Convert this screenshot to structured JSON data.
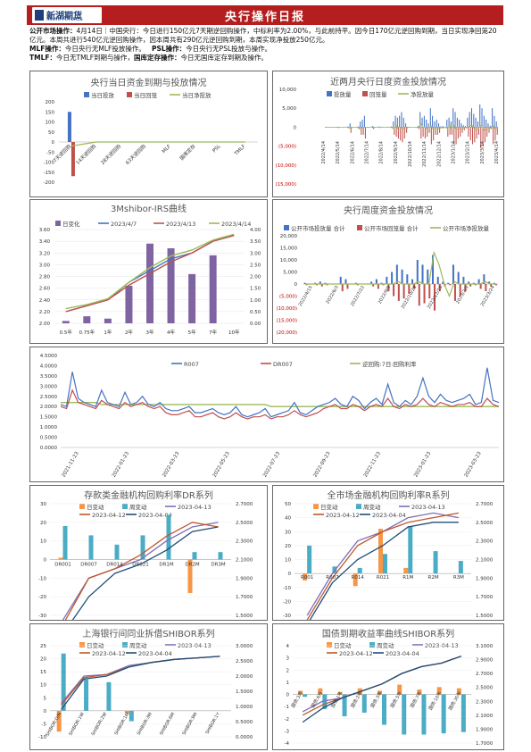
{
  "header": {
    "logo_cn": "新湖期货",
    "logo_en": "XINHU FUTURES",
    "title": "央行操作日报"
  },
  "summary": {
    "l1_label": "公开市场操作：",
    "l1_text": "4月14日｜中国央行：今日进行150亿元7天期逆回购操作，中标利率为2.00%，与此前持平。因今日170亿元逆回购到期，当日实现净回笼20亿元。本周共进行540亿元逆回购操作，因本周共有290亿元逆回购到期，本周实现净投放250亿元。",
    "l2_label1": "MLF操作：",
    "l2_text1": "今日央行无MLF投放操作。",
    "l2_label2": "PSL操作：",
    "l2_text2": "今日央行无PSL投放与操作。",
    "l3_label1": "TMLF：",
    "l3_text1": "今日无TMLF到期与操作，",
    "l3_label2": "国库定存操作：",
    "l3_text2": "今日无国库定存到期及操作。"
  },
  "chart_data": [
    {
      "id": "c1",
      "type": "bar",
      "title": "央行当日资金到期与投放情况",
      "categories": [
        "7天逆回购",
        "14天逆回购",
        "28天逆回购",
        "63天逆回购",
        "MLF",
        "国库定存",
        "PSL",
        "TMLF"
      ],
      "series": [
        {
          "name": "当日投放",
          "color": "#4472c4",
          "values": [
            150,
            0,
            0,
            0,
            0,
            0,
            0,
            0
          ]
        },
        {
          "name": "当日回笼",
          "color": "#c0504d",
          "values": [
            -170,
            0,
            0,
            0,
            0,
            0,
            0,
            0
          ]
        },
        {
          "name": "当日净投放",
          "color": "#9bbb59",
          "values": [
            -20,
            0,
            0,
            0,
            0,
            0,
            0,
            0
          ]
        }
      ],
      "yticks": [
        "200",
        "150",
        "100",
        "50",
        "0",
        "-50",
        "-100",
        "-150",
        "-200"
      ],
      "ylim": [
        -200,
        200
      ]
    },
    {
      "id": "c2",
      "type": "bar",
      "title": "近两月央行日度资金投放情况",
      "legend": [
        "投放量",
        "回笼量",
        "净投放量"
      ],
      "x": [
        "2022/4/14",
        "2022/5/14",
        "2022/6/14",
        "2022/7/14",
        "2022/8/14",
        "2022/9/14",
        "2022/10/14",
        "2022/11/14",
        "2022/12/14",
        "2023/1/14",
        "2023/2/14",
        "2023/3/14",
        "2023/4/14"
      ],
      "yticks": [
        "10,000",
        "5,000",
        "0",
        "(5,000)",
        "(10,000)",
        "(15,000)"
      ],
      "ylim": [
        -15000,
        10000
      ],
      "invest": [
        100,
        20,
        20,
        30,
        20,
        20,
        100,
        20,
        20,
        20,
        50,
        200,
        1000,
        20,
        20,
        100,
        200,
        1500,
        2000,
        3000,
        100,
        20,
        20,
        300,
        20,
        20,
        200,
        100,
        20,
        20,
        100,
        20,
        200,
        1500,
        3000,
        2500,
        3000,
        4000,
        2500,
        1000,
        100,
        20,
        20,
        20,
        20,
        300,
        4000,
        2500,
        3000,
        2000,
        1000,
        5000,
        3000,
        1500,
        2000,
        1000,
        200,
        300,
        100,
        2000,
        2500,
        1500,
        5000,
        4000,
        2500,
        2000,
        1000,
        500,
        300,
        2500,
        4000,
        5000,
        3500,
        2500,
        1500,
        6000,
        5000,
        3000,
        2000,
        1000,
        400,
        5000,
        3000,
        1500
      ],
      "withdraw": [
        -100,
        -20,
        -20,
        -30,
        -20,
        -20,
        -200,
        -20,
        -20,
        -20,
        -50,
        -300,
        -1500,
        -20,
        -20,
        -100,
        -500,
        -2000,
        -2000,
        -3000,
        -100,
        -20,
        -20,
        -500,
        -20,
        -20,
        -200,
        -100,
        -20,
        -20,
        -100,
        -20,
        -300,
        -2000,
        -2500,
        -3000,
        -3500,
        -4000,
        -3000,
        -1500,
        -100,
        -20,
        -20,
        -20,
        -20,
        -500,
        -3000,
        -2500,
        -3000,
        -2500,
        -1500,
        -4500,
        -3500,
        -2000,
        -2000,
        -1500,
        -300,
        -300,
        -100,
        -2500,
        -2000,
        -2000,
        -4500,
        -4500,
        -3000,
        -2500,
        -1500,
        -800,
        -300,
        -2500,
        -3500,
        -4500,
        -4000,
        -3000,
        -2000,
        -5500,
        -5000,
        -4000,
        -2500,
        -1500,
        -500,
        -4500,
        -3500,
        -2000
      ],
      "net": [
        0,
        0,
        0,
        0,
        0,
        0,
        -100,
        0,
        0,
        0,
        0,
        -100,
        -500,
        0,
        0,
        0,
        -300,
        -500,
        0,
        0,
        0,
        0,
        0,
        -200,
        0,
        0,
        0,
        0,
        0,
        0,
        0,
        0,
        -100,
        -500,
        500,
        -500,
        -500,
        0,
        -500,
        -500,
        0,
        0,
        0,
        0,
        0,
        -200,
        1000,
        0,
        0,
        -500,
        -500,
        500,
        -500,
        -500,
        0,
        -500,
        -100,
        0,
        0,
        -500,
        500,
        -500,
        500,
        -500,
        -500,
        -500,
        -500,
        -300,
        0,
        0,
        500,
        500,
        -500,
        -500,
        -500,
        500,
        0,
        -1000,
        -500,
        -500,
        -100,
        500,
        -500,
        -500
      ]
    },
    {
      "id": "c3",
      "type": "bar+line",
      "title": "3Mshibor-IRS曲线",
      "legend": [
        "日变化",
        "2023/4/7",
        "2023/4/13",
        "2023/4/14"
      ],
      "categories": [
        "0.5年",
        "0.75年",
        "1年",
        "2年",
        "3年",
        "4年",
        "5年",
        "7年",
        "10年"
      ],
      "daily_change": [
        0.1,
        0.3,
        0.2,
        1.6,
        3.4,
        3.2,
        2.1,
        2.9,
        null
      ],
      "curve_0407": [
        2.2,
        2.3,
        2.4,
        2.7,
        2.9,
        3.1,
        3.2,
        3.4,
        3.5
      ],
      "curve_0413": [
        2.2,
        2.3,
        2.4,
        2.65,
        2.85,
        3.05,
        3.2,
        3.4,
        3.5
      ],
      "curve_0414": [
        2.25,
        2.32,
        2.42,
        2.7,
        2.95,
        3.15,
        3.25,
        3.42,
        3.52
      ],
      "yticks_left": [
        "3.60",
        "3.40",
        "3.20",
        "3.00",
        "2.80",
        "2.60",
        "2.40",
        "2.20",
        "2.00"
      ],
      "yticks_right": [
        "4.00",
        "3.50",
        "3.00",
        "2.50",
        "2.00",
        "1.50",
        "1.00",
        "0.50",
        "0.00"
      ],
      "ylim_left": [
        2.0,
        3.6
      ],
      "ylim_right": [
        0,
        4
      ]
    },
    {
      "id": "c4",
      "type": "bar+line",
      "title": "央行周度资金投放情况",
      "legend": [
        "公开市场投放量 合计",
        "公开市场回笼量 合计",
        "公开市场净投放量"
      ],
      "x": [
        "2022/4/15",
        "2022/6/3",
        "2022/7/22",
        "2022/9/9",
        "2022/10/28",
        "2022/12/16",
        "2023/2/3",
        "2023/3/24"
      ],
      "yticks": [
        "20,000",
        "15,000",
        "10,000",
        "5,000",
        "0",
        "(5,000)",
        "(10,000)",
        "(15,000)",
        "(20,000)"
      ],
      "ylim": [
        -20000,
        20000
      ],
      "invest": [
        500,
        200,
        500,
        1000,
        500,
        100,
        200,
        3000,
        2000,
        200,
        500,
        100,
        200,
        1000,
        2000,
        500,
        3000,
        5000,
        8000,
        6000,
        4000,
        2000,
        10000,
        8000,
        6000,
        12000,
        3000,
        1000,
        500,
        8000,
        5000,
        3000,
        1000,
        500,
        2000,
        4000,
        1000,
        500
      ],
      "withdraw": [
        -500,
        -200,
        -500,
        -1000,
        -500,
        -100,
        -200,
        -3000,
        -2000,
        -200,
        -500,
        -100,
        -200,
        -1000,
        -2000,
        -500,
        -3000,
        -5000,
        -7000,
        -6000,
        -4000,
        -2000,
        -9000,
        -8000,
        -6000,
        -11000,
        -3000,
        -1000,
        -500,
        -7000,
        -5000,
        -3000,
        -1000,
        -500,
        -2000,
        -3000,
        -1000,
        -500
      ],
      "net": [
        0,
        0,
        0,
        0,
        0,
        0,
        0,
        0,
        0,
        0,
        0,
        0,
        0,
        0,
        0,
        0,
        0,
        0,
        1000,
        0,
        0,
        0,
        1000,
        0,
        0,
        13000,
        8000,
        0,
        -5000,
        1000,
        0,
        0,
        0,
        0,
        0,
        1000,
        0,
        0
      ]
    },
    {
      "id": "c5",
      "type": "line",
      "title": "",
      "legend": [
        "R007",
        "DR007",
        "逆回购:7日:回购利率"
      ],
      "x_ticks": [
        "2021-11-23",
        "2022-01-23",
        "2022-03-23",
        "2022-05-23",
        "2022-07-23",
        "2022-09-23",
        "2022-11-23",
        "2023-01-23",
        "2023-03-23"
      ],
      "yticks": [
        "4.5000",
        "4.0000",
        "3.5000",
        "3.0000",
        "2.5000",
        "2.0000",
        "1.5000",
        "1.0000",
        "0.5000",
        "0.0000"
      ],
      "ylim": [
        0,
        4.5
      ],
      "r007": [
        2.1,
        2.0,
        3.7,
        2.4,
        2.2,
        2.1,
        2.0,
        2.8,
        2.2,
        2.1,
        2.0,
        2.7,
        2.1,
        2.2,
        2.5,
        2.1,
        2.0,
        2.2,
        1.9,
        1.8,
        1.8,
        1.9,
        2.0,
        1.7,
        1.7,
        1.8,
        1.9,
        1.7,
        1.6,
        1.7,
        2.0,
        1.6,
        1.5,
        1.6,
        1.7,
        1.9,
        1.5,
        1.6,
        1.7,
        1.8,
        2.2,
        1.7,
        1.6,
        1.8,
        2.0,
        2.1,
        2.2,
        2.4,
        2.1,
        2.0,
        2.5,
        2.3,
        1.9,
        2.2,
        2.4,
        2.1,
        3.1,
        2.2,
        2.0,
        2.3,
        2.1,
        2.5,
        3.4,
        2.5,
        2.2,
        2.6,
        2.3,
        2.2,
        2.3,
        2.4,
        2.6,
        2.1,
        2.2,
        3.9,
        2.3,
        2.2
      ],
      "dr007": [
        2.0,
        1.9,
        2.8,
        2.2,
        2.1,
        2.0,
        1.9,
        2.3,
        2.1,
        2.0,
        1.9,
        2.2,
        2.0,
        2.1,
        2.2,
        2.0,
        1.9,
        2.0,
        1.7,
        1.6,
        1.6,
        1.7,
        1.8,
        1.5,
        1.5,
        1.6,
        1.7,
        1.5,
        1.4,
        1.5,
        1.7,
        1.5,
        1.4,
        1.5,
        1.5,
        1.6,
        1.4,
        1.5,
        1.5,
        1.6,
        1.8,
        1.6,
        1.5,
        1.6,
        1.7,
        1.9,
        2.0,
        2.1,
        1.9,
        1.9,
        2.1,
        2.0,
        1.8,
        2.0,
        2.1,
        2.0,
        2.4,
        2.0,
        1.9,
        2.1,
        2.0,
        2.1,
        2.4,
        2.1,
        2.0,
        2.2,
        2.1,
        2.0,
        2.1,
        2.1,
        2.2,
        2.0,
        2.0,
        2.4,
        2.1,
        2.0
      ],
      "reverse_repo": [
        2.2,
        2.2,
        2.2,
        2.2,
        2.2,
        2.2,
        2.2,
        2.1,
        2.1,
        2.1,
        2.1,
        2.1,
        2.1,
        2.1,
        2.1,
        2.1,
        2.1,
        2.1,
        2.1,
        2.1,
        2.1,
        2.1,
        2.1,
        2.1,
        2.1,
        2.1,
        2.1,
        2.1,
        2.1,
        2.1,
        2.1,
        2.1,
        2.1,
        2.1,
        2.1,
        2.1,
        2.0,
        2.0,
        2.0,
        2.0,
        2.0,
        2.0,
        2.0,
        2.0,
        2.0,
        2.0,
        2.0,
        2.0,
        2.0,
        2.0,
        2.0,
        2.0,
        2.0,
        2.0,
        2.0,
        2.0,
        2.0,
        2.0,
        2.0,
        2.0,
        2.0,
        2.0,
        2.0,
        2.0,
        2.0,
        2.0,
        2.0,
        2.0,
        2.0,
        2.0,
        2.0,
        2.0,
        2.0,
        2.0,
        2.0,
        2.0
      ]
    },
    {
      "id": "c6",
      "type": "bar+line",
      "title": "存款类金融机构回购利率DR系列",
      "legend": [
        "日变动",
        "周变动",
        "2023-04-13",
        "2023-04-12",
        "2023-04-04"
      ],
      "categories": [
        "DR001",
        "DR007",
        "DR014",
        "DR021",
        "DR1M",
        "DR2M",
        "DR3M"
      ],
      "day": [
        1,
        0,
        0,
        0,
        0,
        -18,
        0
      ],
      "week": [
        18,
        13,
        8,
        13,
        24,
        4,
        4
      ],
      "l0413": [
        1.45,
        1.9,
        2.0,
        2.1,
        2.3,
        2.45,
        2.5
      ],
      "l0412": [
        1.4,
        1.9,
        2.0,
        2.15,
        2.35,
        2.5,
        2.45
      ],
      "l0404": [
        1.3,
        1.7,
        1.95,
        2.05,
        2.2,
        2.4,
        2.45
      ],
      "yticks_left": [
        "30",
        "20",
        "10",
        "0",
        "-10",
        "-20",
        "-30"
      ],
      "yticks_right": [
        "2.7000",
        "2.5000",
        "2.3000",
        "2.1000",
        "1.9000",
        "1.7000",
        "1.5000"
      ],
      "ylim_left": [
        -30,
        30
      ],
      "ylim_right": [
        1.5,
        2.7
      ]
    },
    {
      "id": "c7",
      "type": "bar+line",
      "title": "全市场金融机构回购利率R系列",
      "legend": [
        "日变动",
        "周变动",
        "2023-04-13",
        "2023-04-12",
        "2023-04-04"
      ],
      "categories": [
        "R001",
        "R007",
        "R014",
        "R021",
        "R1M",
        "R2M",
        "R3M"
      ],
      "day": [
        -5,
        0,
        -9,
        32,
        4,
        0,
        0
      ],
      "week": [
        20,
        5,
        4,
        14,
        34,
        16,
        9
      ],
      "l0413": [
        1.5,
        1.95,
        2.3,
        2.4,
        2.55,
        2.6,
        2.55
      ],
      "l0412": [
        1.45,
        1.9,
        2.25,
        2.4,
        2.5,
        2.55,
        2.6
      ],
      "l0404": [
        1.4,
        1.85,
        2.1,
        2.25,
        2.45,
        2.5,
        2.5
      ],
      "yticks_left": [
        "50",
        "40",
        "30",
        "20",
        "10",
        "0",
        "-10",
        "-20",
        "-30"
      ],
      "yticks_right": [
        "2.7000",
        "2.5000",
        "2.3000",
        "2.1000",
        "1.9000",
        "1.7000",
        "1.5000"
      ],
      "ylim_left": [
        -30,
        50
      ],
      "ylim_right": [
        1.5,
        2.7
      ]
    },
    {
      "id": "c8",
      "type": "bar+line",
      "title": "上海银行间同业拆借SHIBOR系列",
      "legend": [
        "日变动",
        "周变动",
        "2023-04-13",
        "2023-04-12",
        "2023-04-04"
      ],
      "categories": [
        "SHIBOR:O/N",
        "SHIBOR:1W",
        "SHIBOR:2W",
        "SHIBOR:1M",
        "SHIBOR:3M",
        "SHIBOR:6M",
        "SHIBOR:9M",
        "SHIBOR:1Y"
      ],
      "day": [
        -8,
        0,
        0,
        -1,
        0,
        0,
        0,
        0
      ],
      "week": [
        22,
        12,
        11,
        -4,
        0,
        0,
        0,
        0
      ],
      "l0413": [
        1.1,
        2.0,
        2.05,
        2.35,
        2.45,
        2.55,
        2.6,
        2.65
      ],
      "l0412": [
        1.05,
        1.95,
        2.05,
        2.3,
        2.45,
        2.55,
        2.6,
        2.65
      ],
      "l0404": [
        0.9,
        1.9,
        2.0,
        2.3,
        2.45,
        2.55,
        2.6,
        2.65
      ],
      "yticks_left": [
        "25",
        "20",
        "15",
        "10",
        "5",
        "0",
        "-5",
        "-10"
      ],
      "yticks_right": [
        "3.0000",
        "2.5000",
        "2.0000",
        "1.5000",
        "1.0000",
        "0.5000",
        "0.0000"
      ],
      "ylim_left": [
        -10,
        25
      ],
      "ylim_right": [
        0,
        3
      ]
    },
    {
      "id": "c9",
      "type": "bar+line",
      "title": "国债到期收益率曲线SHIBOR系列",
      "legend": [
        "日变动",
        "周变动",
        "2023-04-13",
        "2023-04-12",
        "2023-04-04"
      ],
      "categories": [
        "国债:3月",
        "国债:6月",
        "国债:1年",
        "国债:2年",
        "国债:3年",
        "国债:5年",
        "国债:7年",
        "国债:10年",
        "国债:30年"
      ],
      "day": [
        0.3,
        0.5,
        0.2,
        0.5,
        0.3,
        0.8,
        0.4,
        0.6,
        0.5
      ],
      "week": [
        -0.2,
        -1.2,
        -1.8,
        -1.5,
        -2.5,
        -3.3,
        -3.3,
        -3.2,
        -3.1
      ],
      "l0413": [
        2.15,
        2.3,
        2.35,
        2.45,
        2.55,
        2.7,
        2.8,
        2.85,
        2.95
      ],
      "l0412": [
        2.1,
        2.25,
        2.35,
        2.45,
        2.55,
        2.7,
        2.8,
        2.85,
        2.95
      ],
      "l0404": [
        2.0,
        2.2,
        2.35,
        2.45,
        2.55,
        2.7,
        2.8,
        2.85,
        2.95
      ],
      "yticks_left": [
        "4",
        "3",
        "2",
        "1",
        "0",
        "-1",
        "-2",
        "-3",
        "-4"
      ],
      "yticks_right": [
        "3.1000",
        "2.9000",
        "2.7000",
        "2.5000",
        "2.3000",
        "2.1000",
        "1.9000",
        "1.7000"
      ],
      "ylim_left": [
        -4,
        4
      ],
      "ylim_right": [
        1.7,
        3.1
      ]
    }
  ]
}
